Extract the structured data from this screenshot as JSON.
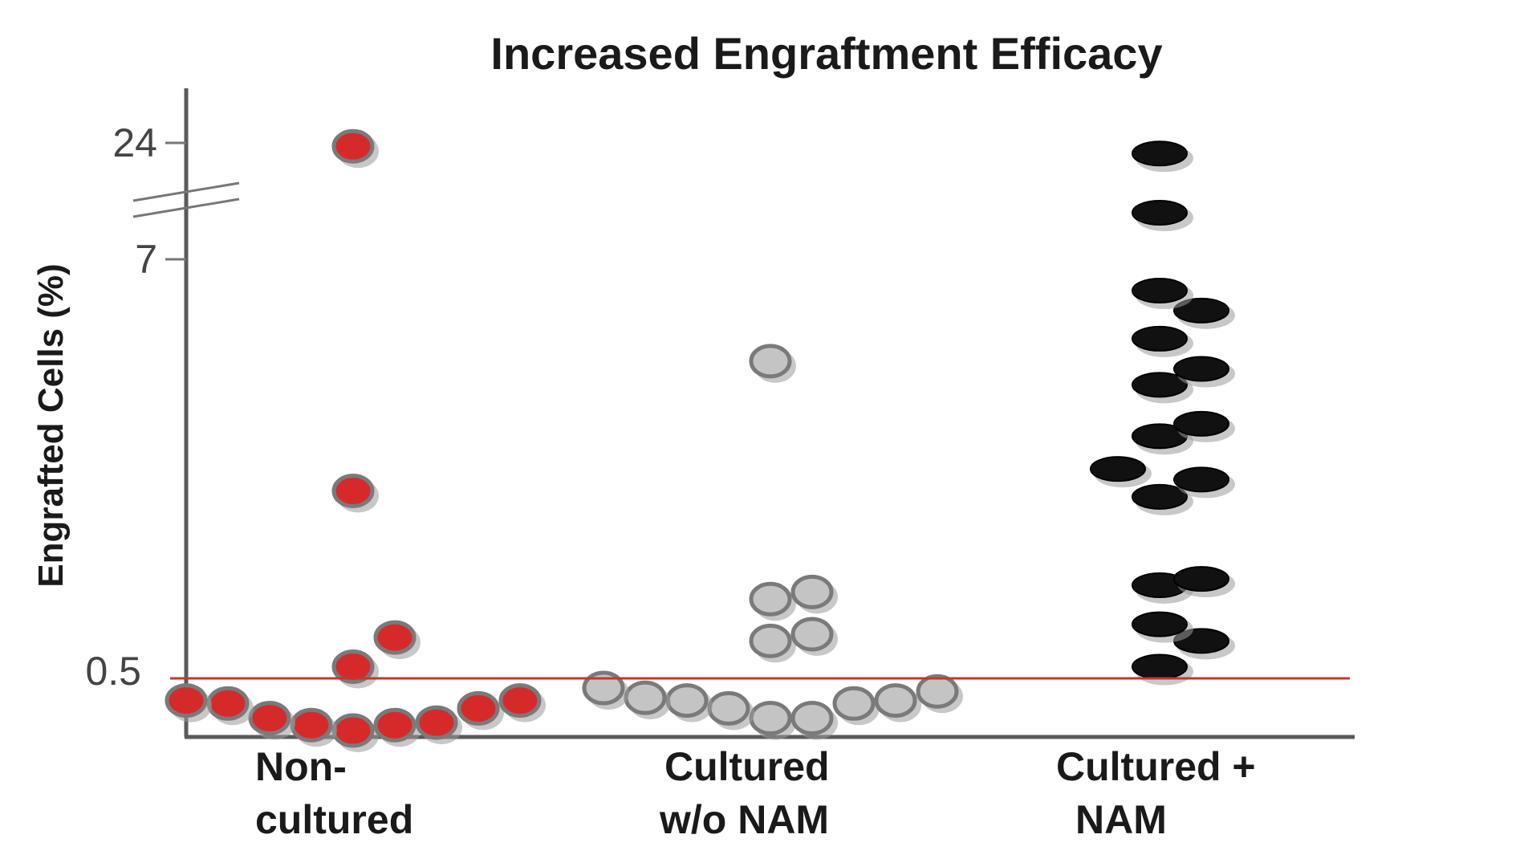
{
  "chart_data": {
    "type": "scatter",
    "title": "Increased Engraftment Efficacy",
    "xlabel": "",
    "ylabel": "Engrafted Cells (%)",
    "y_axis_break": true,
    "y_ticks": [
      "24",
      "7",
      "0.5"
    ],
    "categories": [
      {
        "line1": "Non-",
        "line2": "cultured"
      },
      {
        "line1": "Cultured",
        "line2": "w/o NAM"
      },
      {
        "line1": "Cultured +",
        "line2": "NAM"
      }
    ],
    "threshold": {
      "value": 0.5,
      "color": "#c0392b"
    },
    "grid": false,
    "series": [
      {
        "category": "Non-cultured",
        "color": "#d62a2a",
        "values": [
          23,
          3.0,
          0.95,
          0.6,
          0.3,
          0.3,
          0.28,
          0.25,
          0.2,
          0.18,
          0.17,
          0.17,
          0.15
        ]
      },
      {
        "category": "Cultured w/o NAM",
        "color": "#c4c4c4",
        "values": [
          5.5,
          1.5,
          1.4,
          1.0,
          0.9,
          0.4,
          0.37,
          0.32,
          0.3,
          0.3,
          0.28,
          0.25,
          0.2,
          0.2
        ]
      },
      {
        "category": "Cultured + NAM",
        "color": "#111111",
        "values": [
          21,
          10,
          6.5,
          6.2,
          5.8,
          5.4,
          5.2,
          4.4,
          4.1,
          3.4,
          3.2,
          2.9,
          1.7,
          1.6,
          1.1,
          0.9,
          0.6
        ]
      }
    ]
  }
}
